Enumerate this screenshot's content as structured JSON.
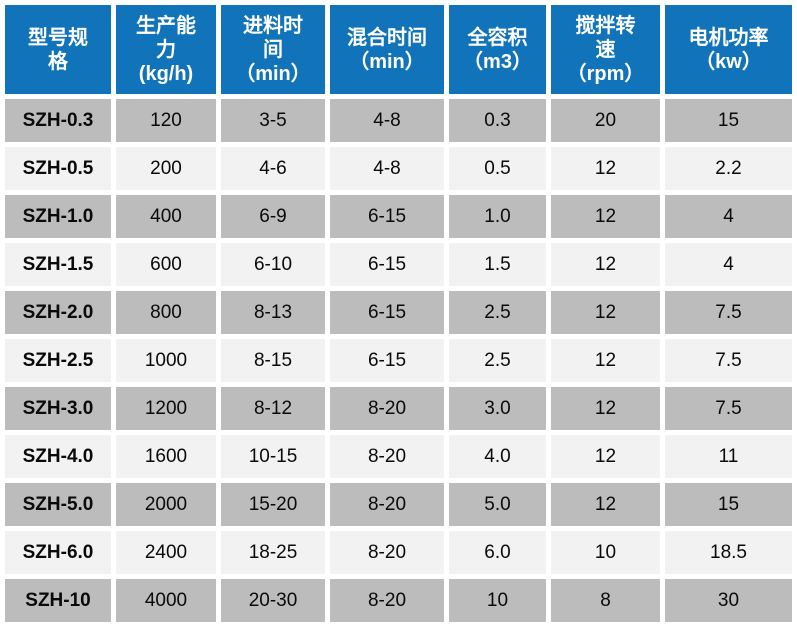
{
  "colors": {
    "header_bg": "#1173b9",
    "header_text": "#ffffff",
    "row_gray_bg": "#bcbcbc",
    "row_light_bg": "#f2f2f2",
    "grid_gap": "#ffffff",
    "cell_text": "#0a0a0a"
  },
  "table": {
    "header_display": [
      "型号规\n格",
      "生产能\n力\n(kg/h)",
      "进料时\n间\n（min）",
      "混合时间\n（min）",
      "全容积\n（m3）",
      "搅拌转\n速\n（rpm）",
      "电机功率\n（kw）"
    ]
  },
  "chart_data": {
    "type": "table",
    "columns": [
      "型号规格",
      "生产能力 (kg/h)",
      "进料时间（min）",
      "混合时间（min）",
      "全容积（m3）",
      "搅拌转速（rpm）",
      "电机功率（kw）"
    ],
    "rows": [
      [
        "SZH-0.3",
        "120",
        "3-5",
        "4-8",
        "0.3",
        "20",
        "15"
      ],
      [
        "SZH-0.5",
        "200",
        "4-6",
        "4-8",
        "0.5",
        "12",
        "2.2"
      ],
      [
        "SZH-1.0",
        "400",
        "6-9",
        "6-15",
        "1.0",
        "12",
        "4"
      ],
      [
        "SZH-1.5",
        "600",
        "6-10",
        "6-15",
        "1.5",
        "12",
        "4"
      ],
      [
        "SZH-2.0",
        "800",
        "8-13",
        "6-15",
        "2.5",
        "12",
        "7.5"
      ],
      [
        "SZH-2.5",
        "1000",
        "8-15",
        "6-15",
        "2.5",
        "12",
        "7.5"
      ],
      [
        "SZH-3.0",
        "1200",
        "8-12",
        "8-20",
        "3.0",
        "12",
        "7.5"
      ],
      [
        "SZH-4.0",
        "1600",
        "10-15",
        "8-20",
        "4.0",
        "12",
        "11"
      ],
      [
        "SZH-5.0",
        "2000",
        "15-20",
        "8-20",
        "5.0",
        "12",
        "15"
      ],
      [
        "SZH-6.0",
        "2400",
        "18-25",
        "8-20",
        "6.0",
        "10",
        "18.5"
      ],
      [
        "SZH-10",
        "4000",
        "20-30",
        "8-20",
        "10",
        "8",
        "30"
      ]
    ]
  }
}
